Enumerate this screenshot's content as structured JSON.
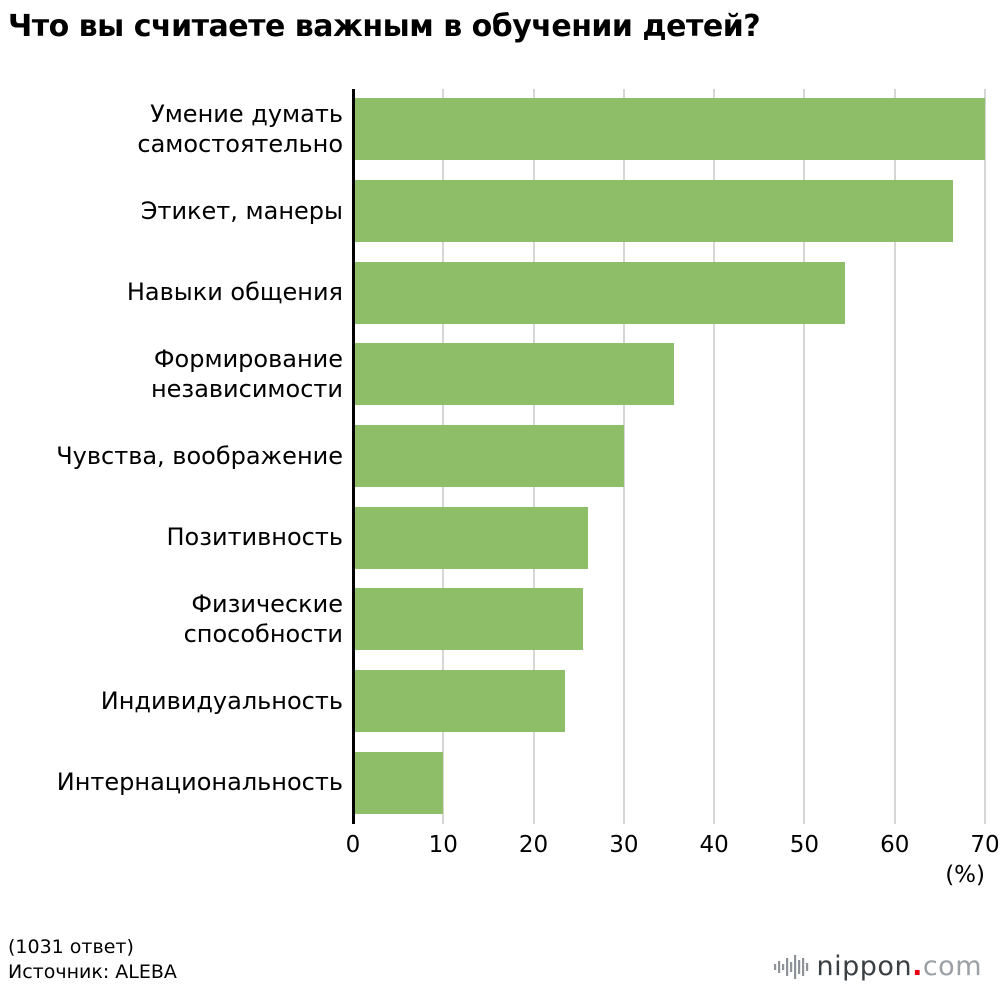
{
  "title": "Что вы считаете важным в обучении детей?",
  "chart_data": {
    "type": "bar",
    "orientation": "horizontal",
    "title": "Что вы считаете важным в обучении детей?",
    "categories": [
      "Умение думать\nсамостоятельно",
      "Этикет, манеры",
      "Навыки общения",
      "Формирование\nнезависимости",
      "Чувства, воображение",
      "Позитивность",
      "Физические\nспособности",
      "Индивидуальность",
      "Интернациональность"
    ],
    "values": [
      70,
      66.5,
      54.5,
      35.5,
      30,
      26,
      25.5,
      23.5,
      10
    ],
    "xlim": [
      0,
      70
    ],
    "xticks": [
      0,
      10,
      20,
      30,
      40,
      50,
      60,
      70
    ],
    "unit_label": "(%)",
    "bar_color": "#8ebf68",
    "grid": true,
    "legend": "none"
  },
  "footer": {
    "responses": "(1031 ответ)",
    "source": "Источник: ALEBA"
  },
  "logo": {
    "name": "nippon",
    "dot": ".",
    "tld": "com",
    "dot_color": "#e60012"
  }
}
